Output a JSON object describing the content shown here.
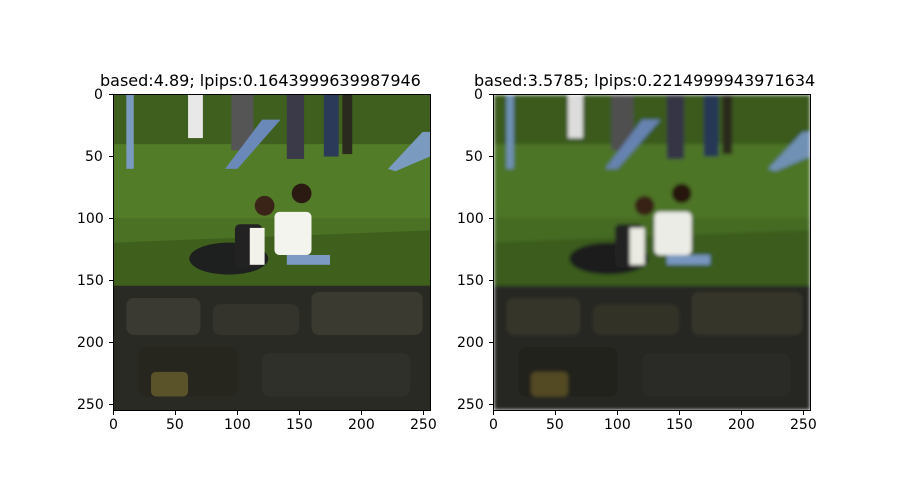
{
  "panels": [
    {
      "title": "based:4.89; lpips:0.1643999639987946",
      "x_ticks": [
        "0",
        "50",
        "100",
        "150",
        "200",
        "250"
      ],
      "y_ticks": [
        "0",
        "50",
        "100",
        "150",
        "200",
        "250"
      ],
      "image": "sharp park photo: couple sitting on grass beside a dark bag, people walking in background, dark rocks in foreground"
    },
    {
      "title": "based:3.5785; lpips:0.2214999943971634",
      "x_ticks": [
        "0",
        "50",
        "100",
        "150",
        "200",
        "250"
      ],
      "y_ticks": [
        "0",
        "50",
        "100",
        "150",
        "200",
        "250"
      ],
      "image": "blurred version of the same park photo"
    }
  ],
  "colors": {
    "grass": "#4f7a26",
    "shadow": "#2d4715",
    "rocks": "#2a2a24",
    "shirt": "#f2f2ea"
  }
}
